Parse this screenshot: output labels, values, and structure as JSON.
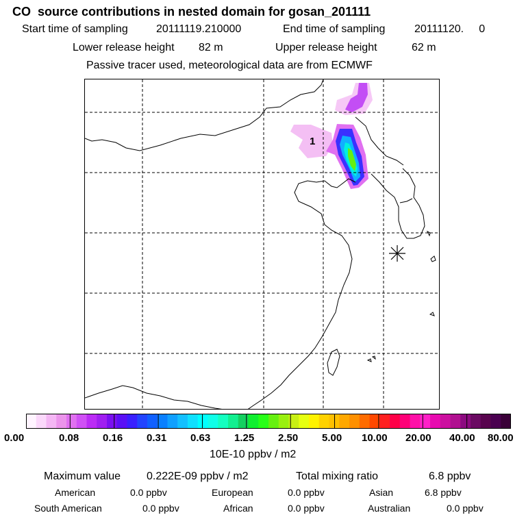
{
  "header": {
    "title": "CO  source contributions in nested domain for gosan_201111",
    "start_label": "Start time of sampling",
    "start_value": "20111119.210000",
    "end_label": "End time of sampling",
    "end_value": "20111120.     0",
    "lower_label": "Lower release height",
    "lower_value": "82 m",
    "upper_label": "Upper release height",
    "upper_value": "62 m",
    "note": "Passive tracer used, meteorological data are from ECMWF"
  },
  "map": {
    "source_marker_label": "1",
    "receptor_marker": "gosan-station-star"
  },
  "colorbar": {
    "unit": "10E-10 ppbv / m2",
    "tick_labels": [
      "0.00",
      "0.08",
      "0.16",
      "0.31",
      "0.63",
      "1.25",
      "2.50",
      "5.00",
      "10.00",
      "20.00",
      "40.00",
      "80.00"
    ],
    "colors": [
      "#fff4ff",
      "#fbd8fb",
      "#f4b6f4",
      "#eb94eb",
      "#e070f0",
      "#d050f5",
      "#bb2cf5",
      "#a01ff0",
      "#7a10f0",
      "#5a10f5",
      "#3a20ff",
      "#2244ff",
      "#1060ff",
      "#0a80ff",
      "#10a0ff",
      "#14c0ff",
      "#10e0ff",
      "#00ffff",
      "#10ffe8",
      "#14ffc0",
      "#12ef90",
      "#14d060",
      "#10ef30",
      "#28ff18",
      "#66f010",
      "#99f010",
      "#c8f014",
      "#e6ff10",
      "#fff200",
      "#ffd200",
      "#ffc000",
      "#ffa800",
      "#ff9000",
      "#ff6c00",
      "#ff4800",
      "#ff2020",
      "#ff0048",
      "#ff0078",
      "#ff10a8",
      "#ff20c8",
      "#e80bb0",
      "#cc10a0",
      "#b01090",
      "#8c0a80",
      "#6a0a62",
      "#58044e",
      "#4a0050",
      "#3a0038"
    ]
  },
  "summary": {
    "max_label": "Maximum value",
    "max_value": "0.222E-09 ppbv / m2",
    "total_label": "Total mixing ratio",
    "total_value": "6.8 ppbv",
    "regions": [
      {
        "name": "American",
        "value": "0.0 ppbv"
      },
      {
        "name": "European",
        "value": "0.0 ppbv"
      },
      {
        "name": "Asian",
        "value": "6.8 ppbv"
      },
      {
        "name": "South American",
        "value": "0.0 ppbv"
      },
      {
        "name": "African",
        "value": "0.0 ppbv"
      },
      {
        "name": "Australian",
        "value": "0.0 ppbv"
      }
    ]
  }
}
